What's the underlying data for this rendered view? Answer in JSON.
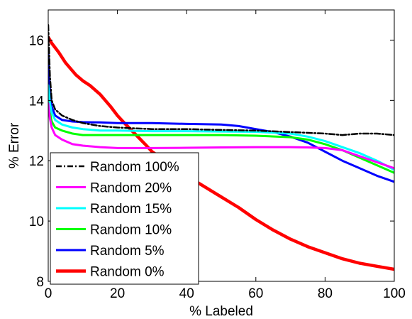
{
  "chart_data": {
    "type": "line",
    "xlabel": "% Labeled",
    "ylabel": "% Error",
    "xlim": [
      0,
      100
    ],
    "ylim": [
      8,
      17
    ],
    "xticks": [
      0,
      20,
      40,
      60,
      80,
      100
    ],
    "yticks": [
      8,
      10,
      12,
      14,
      16
    ],
    "x_tick_labels": [
      "0",
      "20",
      "40",
      "60",
      "80",
      "100"
    ],
    "y_tick_labels": [
      "8",
      "10",
      "12",
      "14",
      "16"
    ],
    "grid": false,
    "legend_position": "bottom-left",
    "series": [
      {
        "name": "Random 100%",
        "color": "#000000",
        "dash": "dash-dot",
        "x": [
          0,
          0.5,
          1,
          2,
          4,
          7,
          10,
          15,
          20,
          30,
          40,
          50,
          60,
          70,
          80,
          85,
          90,
          95,
          100
        ],
        "y": [
          16.5,
          14.8,
          14.0,
          13.7,
          13.5,
          13.35,
          13.25,
          13.15,
          13.1,
          13.05,
          13.05,
          13.02,
          13.0,
          12.95,
          12.9,
          12.85,
          12.9,
          12.9,
          12.85
        ]
      },
      {
        "name": "Random 20%",
        "color": "#ff00ff",
        "dash": "solid",
        "x": [
          0,
          0.5,
          1,
          2,
          4,
          7,
          10,
          15,
          20,
          30,
          40,
          50,
          60,
          70,
          75,
          80,
          85,
          90,
          95,
          100
        ],
        "y": [
          13.9,
          13.4,
          13.1,
          12.85,
          12.7,
          12.55,
          12.5,
          12.45,
          12.42,
          12.42,
          12.43,
          12.44,
          12.45,
          12.45,
          12.44,
          12.42,
          12.35,
          12.15,
          11.95,
          11.75
        ]
      },
      {
        "name": "Random 15%",
        "color": "#00ffff",
        "dash": "solid",
        "x": [
          0,
          0.5,
          1,
          2,
          4,
          7,
          10,
          15,
          20,
          30,
          40,
          50,
          60,
          70,
          75,
          80,
          85,
          90,
          95,
          100
        ],
        "y": [
          14.5,
          13.9,
          13.6,
          13.35,
          13.2,
          13.1,
          13.05,
          13.0,
          13.0,
          12.98,
          12.98,
          12.97,
          12.96,
          12.9,
          12.8,
          12.65,
          12.45,
          12.25,
          12.0,
          11.7
        ]
      },
      {
        "name": "Random 10%",
        "color": "#00ff00",
        "dash": "solid",
        "x": [
          0,
          0.5,
          1,
          2,
          4,
          7,
          10,
          15,
          20,
          30,
          40,
          50,
          60,
          70,
          75,
          80,
          85,
          90,
          95,
          100
        ],
        "y": [
          14.3,
          13.6,
          13.3,
          13.1,
          13.0,
          12.9,
          12.85,
          12.85,
          12.85,
          12.85,
          12.85,
          12.85,
          12.83,
          12.78,
          12.7,
          12.55,
          12.35,
          12.1,
          11.85,
          11.6
        ]
      },
      {
        "name": "Random 5%",
        "color": "#0000ff",
        "dash": "solid",
        "x": [
          0,
          0.5,
          1,
          2,
          4,
          7,
          10,
          15,
          20,
          30,
          40,
          50,
          55,
          60,
          65,
          70,
          75,
          80,
          85,
          90,
          95,
          100
        ],
        "y": [
          15.6,
          14.3,
          13.8,
          13.5,
          13.35,
          13.3,
          13.28,
          13.27,
          13.25,
          13.25,
          13.22,
          13.2,
          13.15,
          13.05,
          12.95,
          12.8,
          12.6,
          12.3,
          12.0,
          11.75,
          11.5,
          11.3
        ]
      },
      {
        "name": "Random 0%",
        "color": "#ff0000",
        "dash": "solid",
        "x": [
          0,
          1,
          3,
          5,
          8,
          10,
          12,
          15,
          18,
          20,
          22,
          25,
          28,
          30,
          35,
          40,
          45,
          50,
          55,
          60,
          65,
          70,
          75,
          80,
          85,
          90,
          95,
          100
        ],
        "y": [
          16.1,
          15.9,
          15.6,
          15.25,
          14.85,
          14.65,
          14.5,
          14.2,
          13.8,
          13.5,
          13.25,
          12.9,
          12.55,
          12.3,
          11.9,
          11.5,
          11.15,
          10.8,
          10.45,
          10.05,
          9.7,
          9.4,
          9.15,
          8.95,
          8.75,
          8.6,
          8.5,
          8.4
        ]
      }
    ]
  }
}
